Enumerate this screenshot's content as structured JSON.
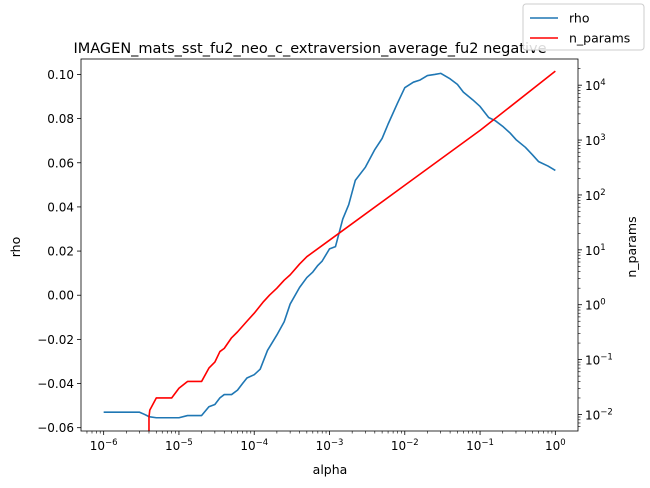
{
  "chart_data": {
    "type": "line",
    "title": "IMAGEN_mats_sst_fu2_neo_c_extraversion_average_fu2 negative",
    "xlabel": "alpha",
    "ylabel": "rho",
    "y2label": "n_params",
    "xscale": "log",
    "xlim": [
      5e-07,
      2
    ],
    "ylim": [
      -0.0615,
      0.107
    ],
    "y2scale": "log",
    "y2lim": [
      0.005,
      30000
    ],
    "x_ticks": [
      {
        "value": 1e-06,
        "mant": "10",
        "exp": "−6"
      },
      {
        "value": 1e-05,
        "mant": "10",
        "exp": "−5"
      },
      {
        "value": 0.0001,
        "mant": "10",
        "exp": "−4"
      },
      {
        "value": 0.001,
        "mant": "10",
        "exp": "−3"
      },
      {
        "value": 0.01,
        "mant": "10",
        "exp": "−2"
      },
      {
        "value": 0.1,
        "mant": "10",
        "exp": "−1"
      },
      {
        "value": 1,
        "mant": "10",
        "exp": "0"
      }
    ],
    "y_ticks": [
      {
        "value": -0.06,
        "label": "−0.06"
      },
      {
        "value": -0.04,
        "label": "−0.04"
      },
      {
        "value": -0.02,
        "label": "−0.02"
      },
      {
        "value": 0.0,
        "label": "0.00"
      },
      {
        "value": 0.02,
        "label": "0.02"
      },
      {
        "value": 0.04,
        "label": "0.04"
      },
      {
        "value": 0.06,
        "label": "0.06"
      },
      {
        "value": 0.08,
        "label": "0.08"
      },
      {
        "value": 0.1,
        "label": "0.10"
      }
    ],
    "y2_ticks": [
      {
        "value": 0.01,
        "mant": "10",
        "exp": "−2"
      },
      {
        "value": 0.1,
        "mant": "10",
        "exp": "−1"
      },
      {
        "value": 1,
        "mant": "10",
        "exp": "0"
      },
      {
        "value": 10,
        "mant": "10",
        "exp": "1"
      },
      {
        "value": 100,
        "mant": "10",
        "exp": "2"
      },
      {
        "value": 1000,
        "mant": "10",
        "exp": "3"
      },
      {
        "value": 10000,
        "mant": "10",
        "exp": "4"
      }
    ],
    "legend": {
      "placement": "top-right",
      "entries": [
        "rho",
        "n_params"
      ]
    },
    "series": [
      {
        "name": "rho",
        "axis": "left",
        "color": "#1f77b4",
        "x": [
          1e-06,
          2e-06,
          3e-06,
          3.5e-06,
          4e-06,
          5e-06,
          6e-06,
          8e-06,
          1e-05,
          1.3e-05,
          2e-05,
          2.5e-05,
          3e-05,
          3.5e-05,
          4e-05,
          5e-05,
          6e-05,
          7e-05,
          8e-05,
          0.0001,
          0.00012,
          0.00015,
          0.0002,
          0.00025,
          0.0003,
          0.0004,
          0.0005,
          0.0006,
          0.0007,
          0.0008,
          0.001,
          0.0012,
          0.0015,
          0.0018,
          0.0022,
          0.003,
          0.004,
          0.005,
          0.006,
          0.008,
          0.01,
          0.013,
          0.016,
          0.02,
          0.025,
          0.03,
          0.04,
          0.05,
          0.06,
          0.08,
          0.1,
          0.13,
          0.16,
          0.2,
          0.25,
          0.3,
          0.4,
          0.5,
          0.6,
          0.8,
          1
        ],
        "y": [
          -0.053,
          -0.053,
          -0.053,
          -0.054,
          -0.055,
          -0.0555,
          -0.0555,
          -0.0555,
          -0.0555,
          -0.0545,
          -0.0545,
          -0.0505,
          -0.0495,
          -0.0465,
          -0.045,
          -0.045,
          -0.043,
          -0.04,
          -0.0375,
          -0.036,
          -0.0335,
          -0.025,
          -0.018,
          -0.012,
          -0.004,
          0.0035,
          0.008,
          0.0105,
          0.0135,
          0.0155,
          0.021,
          0.022,
          0.0345,
          0.041,
          0.052,
          0.058,
          0.066,
          0.071,
          0.0775,
          0.087,
          0.094,
          0.0965,
          0.0975,
          0.0995,
          0.1,
          0.1005,
          0.098,
          0.0955,
          0.092,
          0.0885,
          0.0855,
          0.0805,
          0.079,
          0.0765,
          0.0735,
          0.0705,
          0.067,
          0.0635,
          0.0605,
          0.0585,
          0.0565
        ]
      },
      {
        "name": "n_params",
        "axis": "right",
        "color": "#ff0000",
        "x": [
          4e-06,
          4e-06,
          4.1e-06,
          5e-06,
          6e-06,
          8e-06,
          1e-05,
          1.3e-05,
          1.6e-05,
          2e-05,
          2.5e-05,
          3e-05,
          3.5e-05,
          4e-05,
          5e-05,
          6e-05,
          8e-05,
          0.0001,
          0.00013,
          0.00016,
          0.0002,
          0.00025,
          0.0003,
          0.0004,
          0.0005,
          0.001,
          0.01,
          0.1,
          1
        ],
        "y": [
          0.004,
          0.009,
          0.012,
          0.02,
          0.02,
          0.02,
          0.03,
          0.04,
          0.04,
          0.04,
          0.07,
          0.09,
          0.14,
          0.16,
          0.25,
          0.32,
          0.5,
          0.7,
          1.1,
          1.5,
          2.0,
          2.8,
          3.5,
          5.5,
          7.5,
          15,
          150,
          1500,
          18000
        ]
      }
    ]
  }
}
